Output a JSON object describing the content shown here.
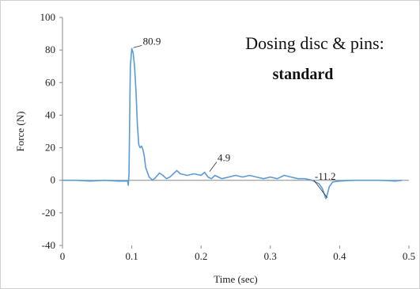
{
  "chart_data": {
    "type": "line",
    "title": "Dosing disc & pins:",
    "subtitle": "standard",
    "xlabel": "Time (sec)",
    "ylabel": "Force (N)",
    "xlim": [
      0,
      0.5
    ],
    "ylim": [
      -40,
      100
    ],
    "xticks": [
      "0",
      "0.1",
      "0.2",
      "0.3",
      "0.4",
      "0.5"
    ],
    "yticks": [
      "100",
      "80",
      "60",
      "40",
      "20",
      "0",
      "-20",
      "-40"
    ],
    "grid": false,
    "color": "#5b9bd5",
    "series": [
      {
        "x": [
          0.0,
          0.02,
          0.04,
          0.06,
          0.08,
          0.094,
          0.095,
          0.096,
          0.097,
          0.098,
          0.1,
          0.102,
          0.104,
          0.106,
          0.108,
          0.11,
          0.112,
          0.114,
          0.116,
          0.118,
          0.12,
          0.125,
          0.13,
          0.135,
          0.14,
          0.145,
          0.15,
          0.155,
          0.16,
          0.165,
          0.17,
          0.18,
          0.19,
          0.2,
          0.205,
          0.21,
          0.215,
          0.22,
          0.225,
          0.23,
          0.24,
          0.25,
          0.26,
          0.27,
          0.28,
          0.29,
          0.3,
          0.31,
          0.32,
          0.33,
          0.34,
          0.35,
          0.36,
          0.365,
          0.37,
          0.375,
          0.38,
          0.382,
          0.385,
          0.39,
          0.4,
          0.42,
          0.44,
          0.46,
          0.48,
          0.49
        ],
        "y": [
          0,
          0,
          -0.5,
          0,
          -0.5,
          -0.5,
          -3,
          4,
          40,
          70,
          80.9,
          78,
          70,
          55,
          35,
          22,
          20,
          21,
          19,
          15,
          8,
          2,
          0,
          2,
          4.5,
          3,
          1,
          2,
          4,
          6,
          4,
          3,
          4,
          3,
          4.9,
          2,
          1,
          3,
          2,
          1,
          2,
          3,
          2,
          3,
          2,
          1,
          2,
          1,
          3,
          2,
          1,
          1,
          0,
          -1,
          -2,
          -5,
          -11.2,
          -9,
          -4,
          -1,
          -0.5,
          0,
          0,
          0,
          -0.5,
          0
        ]
      }
    ],
    "annotations": [
      {
        "text": "80.9",
        "x": 0.1,
        "y": 80.9
      },
      {
        "text": "4.9",
        "x": 0.21,
        "y": 4.9
      },
      {
        "text": "-11.2",
        "x": 0.38,
        "y": -11.2
      }
    ]
  }
}
